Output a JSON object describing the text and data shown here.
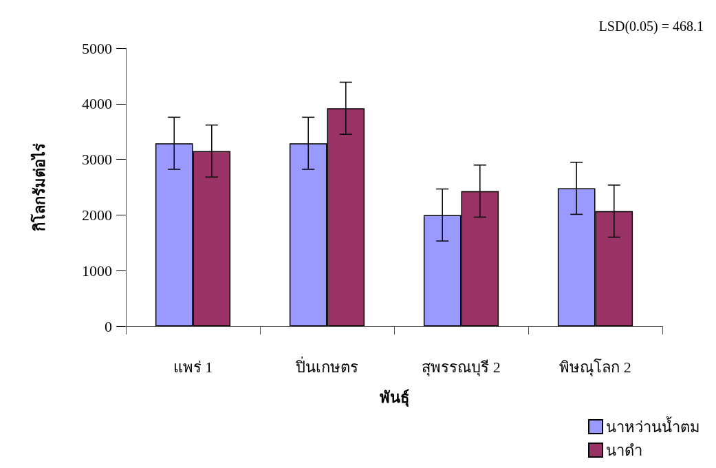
{
  "chart_data": {
    "type": "bar",
    "xlabel": "พันธุ์",
    "ylabel": "กิโลกรัมต่อไร่",
    "annotations": [
      "LSD(0.05) = 468.1"
    ],
    "categories": [
      "แพร่ 1",
      "ปิ่นเกษตร",
      "สุพรรณบุรี 2",
      "พิษณุโลก 2"
    ],
    "series": [
      {
        "name": "นาหว่านน้ำตม",
        "color": "#9999ff",
        "values": [
          3290,
          3290,
          2000,
          2480
        ],
        "errors": [
          468,
          468,
          468,
          468
        ]
      },
      {
        "name": "นาดำ",
        "color": "#993366",
        "values": [
          3150,
          3920,
          2430,
          2070
        ],
        "errors": [
          468,
          468,
          468,
          468
        ]
      }
    ],
    "ylim": [
      0,
      5000
    ],
    "yticks": [
      0,
      1000,
      2000,
      3000,
      4000,
      5000
    ],
    "grid": false,
    "legend": "bottom right"
  }
}
